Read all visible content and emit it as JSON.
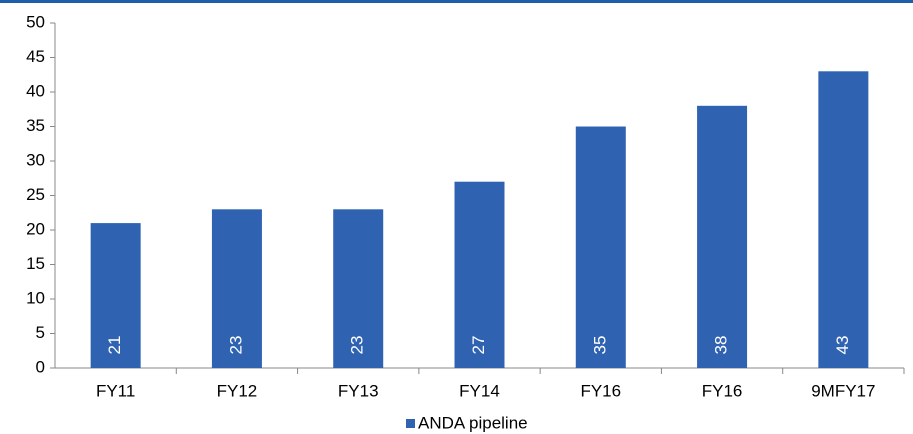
{
  "chart_data": {
    "type": "bar",
    "categories": [
      "FY11",
      "FY12",
      "FY13",
      "FY14",
      "FY16",
      "FY16",
      "9MFY17"
    ],
    "series": [
      {
        "name": "ANDA pipeline",
        "color": "#2f63b2",
        "values": [
          21,
          23,
          23,
          27,
          35,
          38,
          43
        ]
      }
    ],
    "ylim": [
      0,
      50
    ],
    "yticks": [
      0,
      5,
      10,
      15,
      20,
      25,
      30,
      35,
      40,
      45,
      50
    ],
    "grid": false,
    "legend": "bottom",
    "data_labels": true
  }
}
